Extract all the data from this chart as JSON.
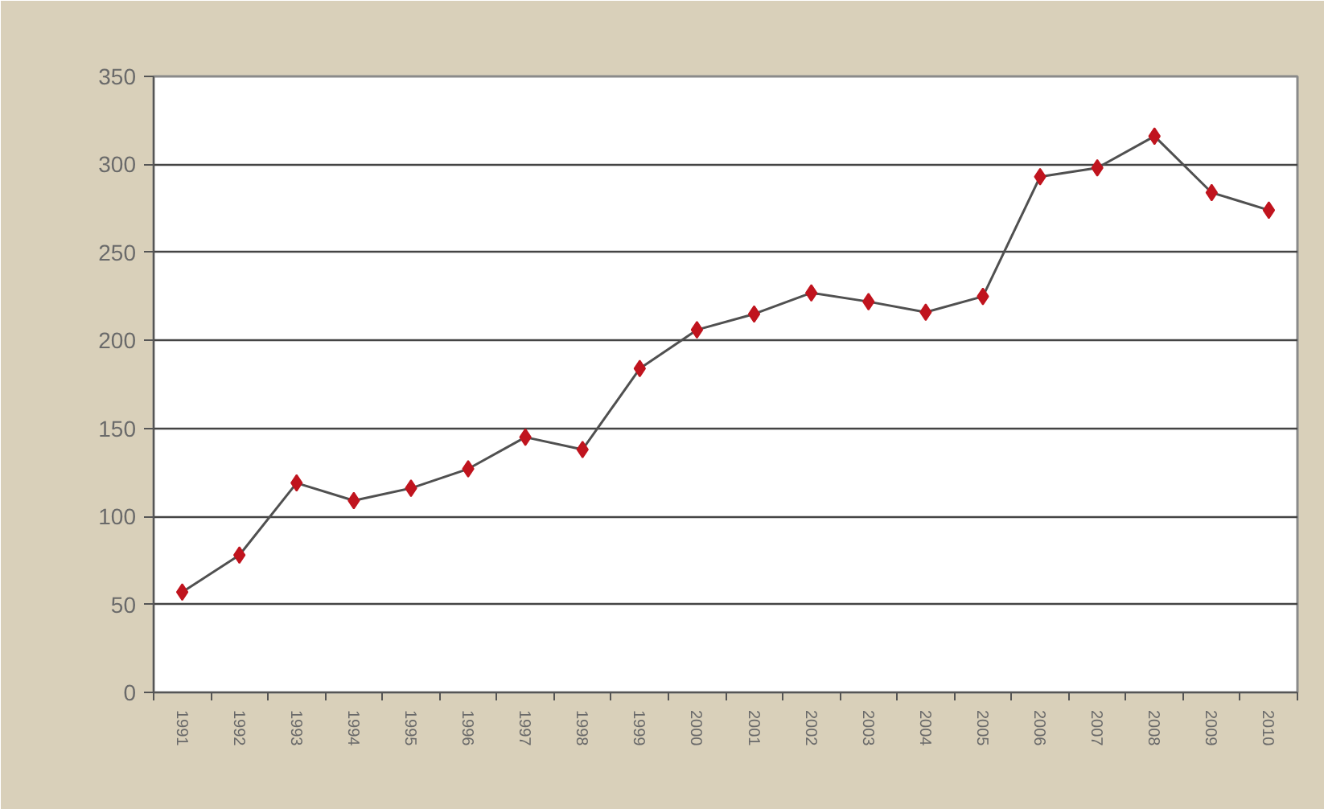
{
  "chart_data": {
    "type": "line",
    "categories": [
      "1991",
      "1992",
      "1993",
      "1994",
      "1995",
      "1996",
      "1997",
      "1998",
      "1999",
      "2000",
      "2001",
      "2002",
      "2003",
      "2004",
      "2005",
      "2006",
      "2007",
      "2008",
      "2009",
      "2010"
    ],
    "series": [
      {
        "color": "#c0141e",
        "values": [
          57,
          78,
          119,
          109,
          116,
          127,
          145,
          138,
          184,
          206,
          215,
          227,
          222,
          216,
          225,
          293,
          298,
          316,
          284,
          274
        ]
      }
    ],
    "ylim": [
      0,
      350
    ],
    "yticks": [
      0,
      50,
      100,
      150,
      200,
      250,
      300,
      350
    ],
    "grid": "y",
    "marker": "diamond"
  }
}
